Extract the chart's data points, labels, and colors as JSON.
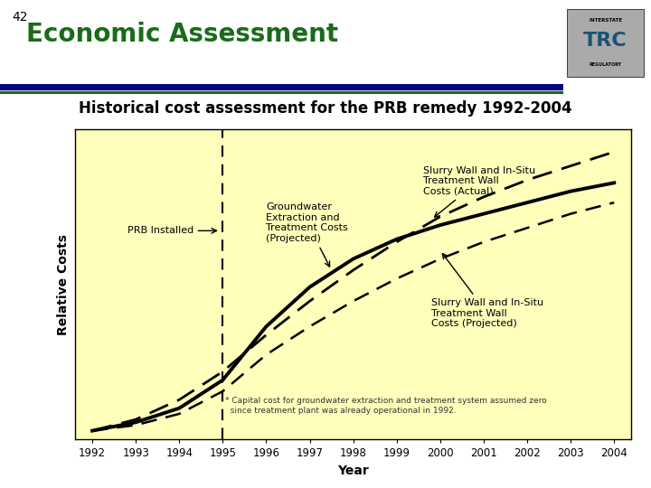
{
  "title": "Historical cost assessment for the PRB remedy 1992-2004",
  "slide_number": "42",
  "slide_title": "Economic Assessment",
  "xlabel": "Year",
  "ylabel": "Relative Costs",
  "years": [
    1992,
    1993,
    1994,
    1995,
    1996,
    1997,
    1998,
    1999,
    2000,
    2001,
    2002,
    2003,
    2004
  ],
  "gw_projected": [
    0.01,
    0.05,
    0.12,
    0.22,
    0.35,
    0.47,
    0.58,
    0.68,
    0.77,
    0.84,
    0.9,
    0.95,
    1.0
  ],
  "slurry_actual": [
    0.01,
    0.04,
    0.09,
    0.19,
    0.38,
    0.52,
    0.62,
    0.69,
    0.74,
    0.78,
    0.82,
    0.86,
    0.89
  ],
  "slurry_projected": [
    0.01,
    0.03,
    0.07,
    0.15,
    0.28,
    0.38,
    0.47,
    0.55,
    0.62,
    0.68,
    0.73,
    0.78,
    0.82
  ],
  "prb_installed_year": 1995,
  "plot_bg_color": "#FFFFBB",
  "background_color": "#FFFFFF",
  "title_color": "#000000",
  "slide_title_color": "#1a6b1a",
  "title_fontsize": 12,
  "slide_title_fontsize": 20,
  "axis_label_fontsize": 10,
  "tick_fontsize": 8.5,
  "annotation_fontsize": 8,
  "footnote_text": "* Capital cost for groundwater extraction and treatment system assumed zero\n  since treatment plant was already operational in 1992.",
  "deco_line1_color": "#000080",
  "deco_line2_color": "#1a6b1a",
  "ylim_min": -0.02,
  "ylim_max": 1.08,
  "xlim_min": 1991.6,
  "xlim_max": 2004.4
}
